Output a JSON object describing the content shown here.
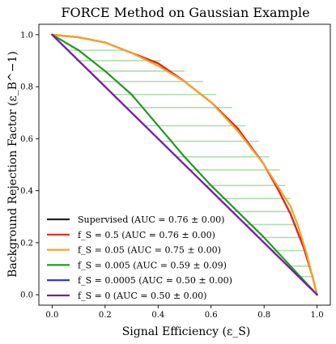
{
  "chart_data": {
    "type": "line",
    "title": "FORCE Method on Gaussian Example",
    "xlabel": "Signal Efficiency (ε_S)",
    "ylabel": "Background Rejection Factor (ε_B^−1)",
    "xlim": [
      -0.05,
      1.05
    ],
    "ylim": [
      -0.04,
      1.04
    ],
    "xticks": [
      0.0,
      0.2,
      0.4,
      0.6,
      0.8,
      1.0
    ],
    "yticks": [
      0.0,
      0.2,
      0.4,
      0.6,
      0.8,
      1.0
    ],
    "xtick_labels": [
      "0.0",
      "0.2",
      "0.4",
      "0.6",
      "0.8",
      "1.0"
    ],
    "ytick_labels": [
      "0.0",
      "0.2",
      "0.4",
      "0.6",
      "0.8",
      "1.0"
    ],
    "grid": false,
    "legend_position": "bottom-left",
    "series": [
      {
        "name": "Supervised (AUC = 0.76 ± 0.00)",
        "color": "#222222",
        "x": [
          0.0,
          0.1,
          0.2,
          0.3,
          0.4,
          0.5,
          0.6,
          0.7,
          0.8,
          0.85,
          0.9,
          0.95,
          0.98,
          1.0
        ],
        "y": [
          1.0,
          0.99,
          0.97,
          0.93,
          0.89,
          0.82,
          0.74,
          0.64,
          0.5,
          0.41,
          0.31,
          0.18,
          0.08,
          0.0
        ]
      },
      {
        "name": "f_S = 0.5 (AUC = 0.76 ± 0.00)",
        "color": "#e8251d",
        "x": [
          0.0,
          0.1,
          0.2,
          0.3,
          0.4,
          0.5,
          0.6,
          0.7,
          0.8,
          0.85,
          0.9,
          0.95,
          0.98,
          1.0
        ],
        "y": [
          1.0,
          0.99,
          0.97,
          0.93,
          0.89,
          0.82,
          0.74,
          0.64,
          0.5,
          0.41,
          0.31,
          0.18,
          0.08,
          0.0
        ]
      },
      {
        "name": "f_S = 0.05 (AUC = 0.75 ± 0.00)",
        "color": "#f5a623",
        "x": [
          0.0,
          0.1,
          0.2,
          0.3,
          0.4,
          0.5,
          0.6,
          0.7,
          0.8,
          0.85,
          0.9,
          0.93,
          0.96,
          1.0
        ],
        "y": [
          1.0,
          0.99,
          0.97,
          0.93,
          0.88,
          0.82,
          0.74,
          0.63,
          0.5,
          0.42,
          0.34,
          0.26,
          0.16,
          0.0
        ]
      },
      {
        "name": "f_S = 0.005 (AUC = 0.59 ± 0.09)",
        "color": "#1f9a1f",
        "x": [
          0.0,
          0.1,
          0.2,
          0.3,
          0.4,
          0.5,
          0.6,
          0.7,
          0.8,
          0.9,
          1.0
        ],
        "y": [
          1.0,
          0.94,
          0.86,
          0.77,
          0.65,
          0.53,
          0.42,
          0.32,
          0.22,
          0.11,
          0.0
        ]
      },
      {
        "name": "f_S = 0.0005 (AUC = 0.50 ± 0.00)",
        "color": "#2b2bd6",
        "x": [
          0.0,
          1.0
        ],
        "y": [
          1.0,
          0.0
        ]
      },
      {
        "name": "f_S = 0 (AUC = 0.50 ± 0.00)",
        "color": "#7b1fa2",
        "x": [
          0.0,
          1.0
        ],
        "y": [
          1.0,
          0.0
        ]
      }
    ],
    "error_bars": {
      "series": "f_S = 0.005 (AUC = 0.59 ± 0.09)",
      "color": "#1f9a1f",
      "opacity": 0.35,
      "y": [
        0.94,
        0.9,
        0.86,
        0.82,
        0.77,
        0.72,
        0.65,
        0.59,
        0.53,
        0.48,
        0.42,
        0.37,
        0.32,
        0.27,
        0.22,
        0.17,
        0.11,
        0.07
      ],
      "x_low": [
        0.06,
        0.09,
        0.14,
        0.18,
        0.23,
        0.28,
        0.35,
        0.41,
        0.47,
        0.52,
        0.58,
        0.63,
        0.68,
        0.73,
        0.78,
        0.83,
        0.89,
        0.93
      ],
      "x_high": [
        0.28,
        0.41,
        0.5,
        0.57,
        0.62,
        0.68,
        0.73,
        0.78,
        0.82,
        0.86,
        0.88,
        0.9,
        0.91,
        0.93,
        0.94,
        0.95,
        0.97,
        0.98
      ]
    }
  }
}
